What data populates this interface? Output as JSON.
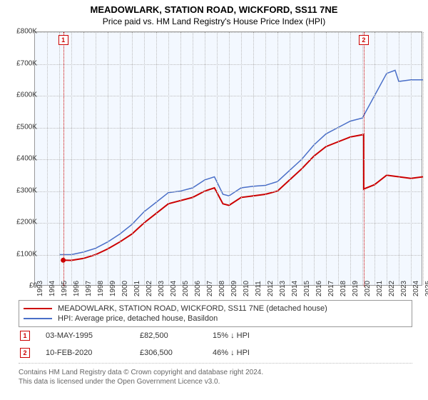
{
  "chart": {
    "type": "line",
    "title": "MEADOWLARK, STATION ROAD, WICKFORD, SS11 7NE",
    "subtitle": "Price paid vs. HM Land Registry's House Price Index (HPI)",
    "title_fontsize": 13,
    "subtitle_fontsize": 12,
    "background_color": "#f3f8ff",
    "grid_color": "#bbbbbb",
    "border_color": "#999999",
    "y_axis": {
      "min": 0,
      "max": 800000,
      "step": 100000,
      "labels": [
        "£0",
        "£100K",
        "£200K",
        "£300K",
        "£400K",
        "£500K",
        "£600K",
        "£700K",
        "£800K"
      ],
      "label_fontsize": 10
    },
    "x_axis": {
      "min": 1993,
      "max": 2025,
      "step": 1,
      "labels": [
        "1993",
        "1994",
        "1995",
        "1996",
        "1997",
        "1998",
        "1999",
        "2000",
        "2001",
        "2002",
        "2003",
        "2004",
        "2005",
        "2006",
        "2007",
        "2008",
        "2009",
        "2010",
        "2011",
        "2012",
        "2013",
        "2014",
        "2015",
        "2016",
        "2017",
        "2018",
        "2019",
        "2020",
        "2021",
        "2022",
        "2023",
        "2024",
        "2025"
      ],
      "label_fontsize": 10
    },
    "series": [
      {
        "name": "MEADOWLARK, STATION ROAD, WICKFORD, SS11 7NE (detached house)",
        "color": "#cc0000",
        "line_width": 2,
        "x": [
          1995.33,
          1996,
          1997,
          1998,
          1999,
          2000,
          2001,
          2002,
          2003,
          2004,
          2005,
          2006,
          2007,
          2007.8,
          2008.5,
          2009,
          2010,
          2011,
          2012,
          2013,
          2014,
          2015,
          2016,
          2017,
          2018,
          2019,
          2020.1,
          2020.11,
          2021,
          2022,
          2023,
          2024,
          2025
        ],
        "y": [
          82500,
          82000,
          88000,
          100000,
          118000,
          140000,
          165000,
          200000,
          230000,
          260000,
          270000,
          280000,
          300000,
          310000,
          260000,
          255000,
          280000,
          285000,
          290000,
          300000,
          335000,
          370000,
          410000,
          440000,
          455000,
          470000,
          478000,
          306500,
          320000,
          350000,
          345000,
          340000,
          345000
        ]
      },
      {
        "name": "HPI: Average price, detached house, Basildon",
        "color": "#4a6fc8",
        "line_width": 1.5,
        "x": [
          1995,
          1996,
          1997,
          1998,
          1999,
          2000,
          2001,
          2002,
          2003,
          2004,
          2005,
          2006,
          2007,
          2007.8,
          2008.5,
          2009,
          2010,
          2011,
          2012,
          2013,
          2014,
          2015,
          2016,
          2017,
          2018,
          2019,
          2020,
          2021,
          2022,
          2022.7,
          2023,
          2024,
          2025
        ],
        "y": [
          100000,
          100000,
          108000,
          120000,
          140000,
          165000,
          195000,
          235000,
          265000,
          295000,
          300000,
          310000,
          335000,
          345000,
          290000,
          285000,
          310000,
          315000,
          318000,
          330000,
          365000,
          400000,
          445000,
          480000,
          500000,
          520000,
          530000,
          600000,
          670000,
          680000,
          645000,
          650000,
          650000
        ]
      }
    ],
    "markers": [
      {
        "id": "1",
        "x": 1995.33,
        "y": 82500
      },
      {
        "id": "2",
        "x": 2020.11,
        "y": 306500
      }
    ]
  },
  "legend": {
    "series_a": {
      "color": "#cc0000",
      "label": "MEADOWLARK, STATION ROAD, WICKFORD, SS11 7NE (detached house)"
    },
    "series_b": {
      "color": "#4a6fc8",
      "label": "HPI: Average price, detached house, Basildon"
    }
  },
  "sales": [
    {
      "id": "1",
      "date": "03-MAY-1995",
      "price": "£82,500",
      "pct": "15% ↓ HPI"
    },
    {
      "id": "2",
      "date": "10-FEB-2020",
      "price": "£306,500",
      "pct": "46% ↓ HPI"
    }
  ],
  "footer": {
    "line1": "Contains HM Land Registry data © Crown copyright and database right 2024.",
    "line2": "This data is licensed under the Open Government Licence v3.0."
  }
}
